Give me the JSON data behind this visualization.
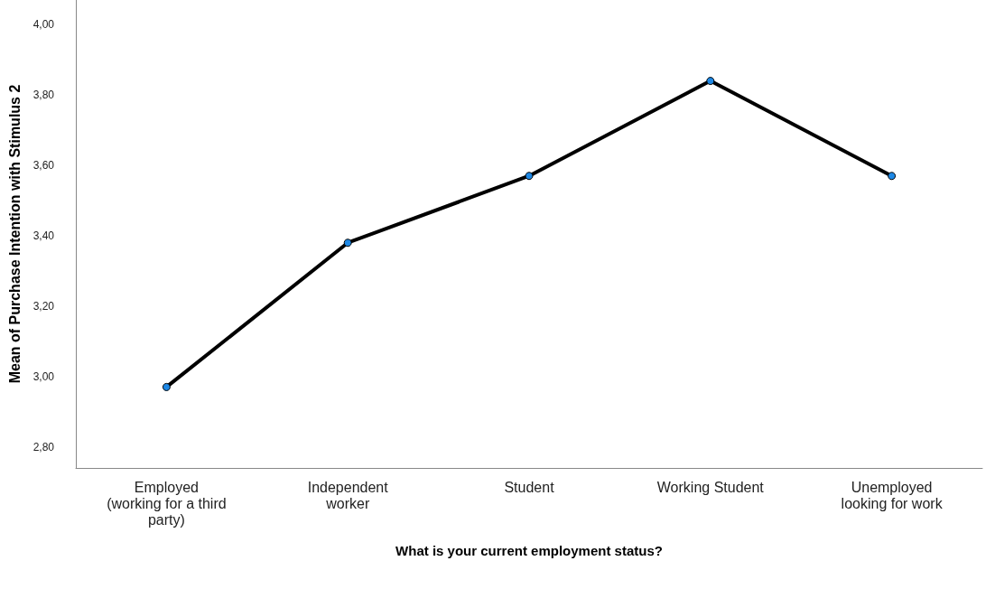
{
  "chart_data": {
    "type": "line",
    "xlabel": "What is your current employment status?",
    "ylabel": "Mean of Purchase Intention with Stimulus 2",
    "categories": [
      "Employed\n(working for a third\nparty)",
      "Independent\nworker",
      "Student",
      "Working Student",
      "Unemployed\nlooking for work"
    ],
    "series": [
      {
        "color": "#000000",
        "colors": [
          "#1e88e5",
          "#1e88e5",
          "#1e88e5",
          "#1e88e5",
          "#1e88e5"
        ],
        "values": [
          2.97,
          3.38,
          3.57,
          3.84,
          3.57
        ]
      }
    ],
    "ylim": [
      2.74,
      4.07
    ],
    "yticks": [
      {
        "value": 2.8,
        "label": "2,80"
      },
      {
        "value": 3,
        "label": "3,00"
      },
      {
        "value": 3.2,
        "label": "3,20"
      },
      {
        "value": 3.4,
        "label": "3,40"
      },
      {
        "value": 3.6,
        "label": "3,60"
      },
      {
        "value": 3.8,
        "label": "3,80"
      },
      {
        "value": 4,
        "label": "4,00"
      }
    ],
    "grid": false,
    "marker": "circle",
    "line_style": "solid"
  }
}
